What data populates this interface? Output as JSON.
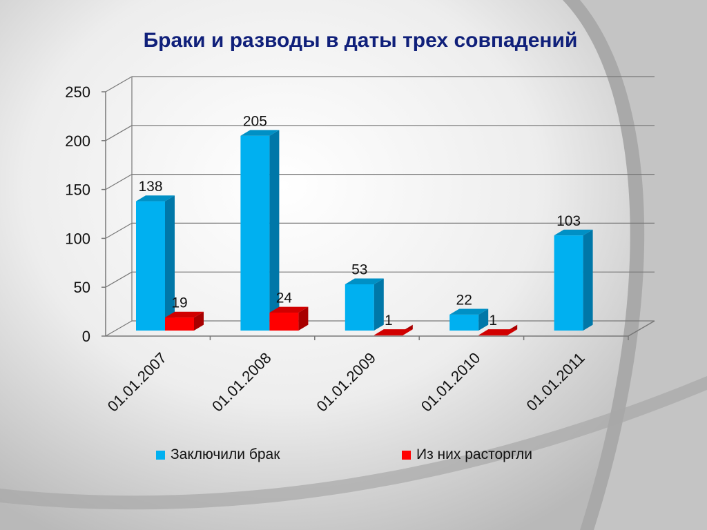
{
  "colors": {
    "background": "#c9c9c9",
    "title": "#10207a",
    "series_1": "#00b0f0",
    "series_1_dark": "#0077a8",
    "series_2": "#ff0000",
    "series_2_dark": "#a80000"
  },
  "chart_data": {
    "type": "bar",
    "title": "Браки и разводы в даты трех совпадений",
    "categories": [
      "01.01.2007",
      "01.01.2008",
      "01.01.2009",
      "01.01.2010",
      "01.01.2011"
    ],
    "series": [
      {
        "name": "Заключили брак",
        "values": [
          138,
          205,
          53,
          22,
          103
        ],
        "labels": [
          "138",
          "205",
          "53",
          "22",
          "103"
        ]
      },
      {
        "name": "Из них расторгли",
        "values": [
          19,
          24,
          1,
          1,
          null
        ],
        "labels": [
          "19",
          "24",
          "1",
          "1",
          ""
        ]
      }
    ],
    "ylim": [
      0,
      250
    ],
    "yticks": [
      "0",
      "50",
      "100",
      "150",
      "200",
      "250"
    ],
    "xlabel": "",
    "ylabel": "",
    "grid": true,
    "legend_position": "bottom",
    "style": "3d-clustered"
  }
}
